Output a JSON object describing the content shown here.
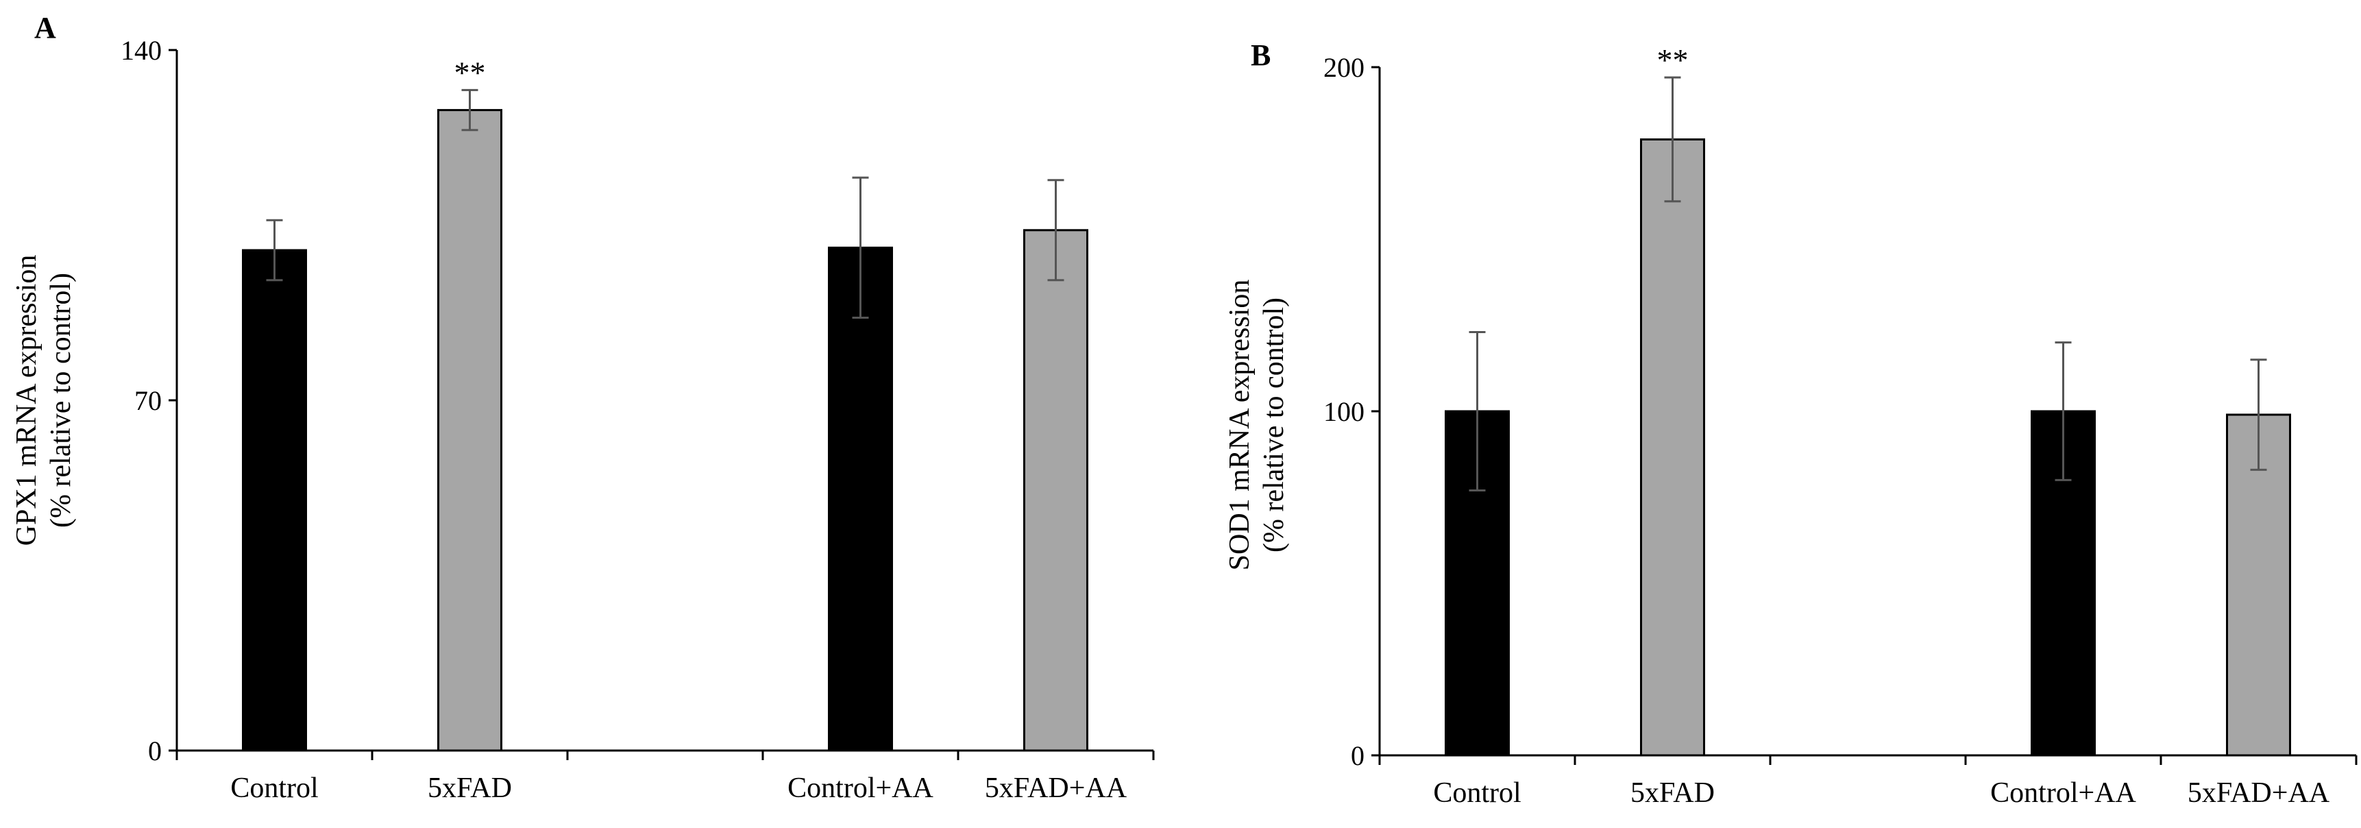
{
  "chart_data": [
    {
      "type": "bar",
      "panel": "A",
      "categories": [
        "Control",
        "5xFAD",
        "",
        "Control+AA",
        "5xFAD+AA"
      ],
      "values": [
        100,
        128,
        null,
        100.5,
        104
      ],
      "errors": [
        6,
        4,
        null,
        14,
        10
      ],
      "bar_colors": [
        "#000000",
        "#a6a6a6",
        null,
        "#000000",
        "#a6a6a6"
      ],
      "annotations": [
        "",
        "**",
        "",
        "",
        ""
      ],
      "title": "",
      "xlabel": "",
      "ylabel_line1": "GPX1 mRNA expression",
      "ylabel_line2": "(% relative to control)",
      "yticks": [
        0,
        70,
        140
      ],
      "ylim": [
        0,
        140
      ],
      "grid": false
    },
    {
      "type": "bar",
      "panel": "B",
      "categories": [
        "Control",
        "5xFAD",
        "",
        "Control+AA",
        "5xFAD+AA"
      ],
      "values": [
        100,
        179,
        null,
        100,
        99
      ],
      "errors": [
        23,
        18,
        null,
        20,
        16
      ],
      "bar_colors": [
        "#000000",
        "#a6a6a6",
        null,
        "#000000",
        "#a6a6a6"
      ],
      "annotations": [
        "",
        "**",
        "",
        "",
        ""
      ],
      "title": "",
      "xlabel": "",
      "ylabel_line1": "SOD1 mRNA expression",
      "ylabel_line2": "(% relative to control)",
      "yticks": [
        0,
        100,
        200
      ],
      "ylim": [
        0,
        200
      ],
      "grid": false
    }
  ]
}
